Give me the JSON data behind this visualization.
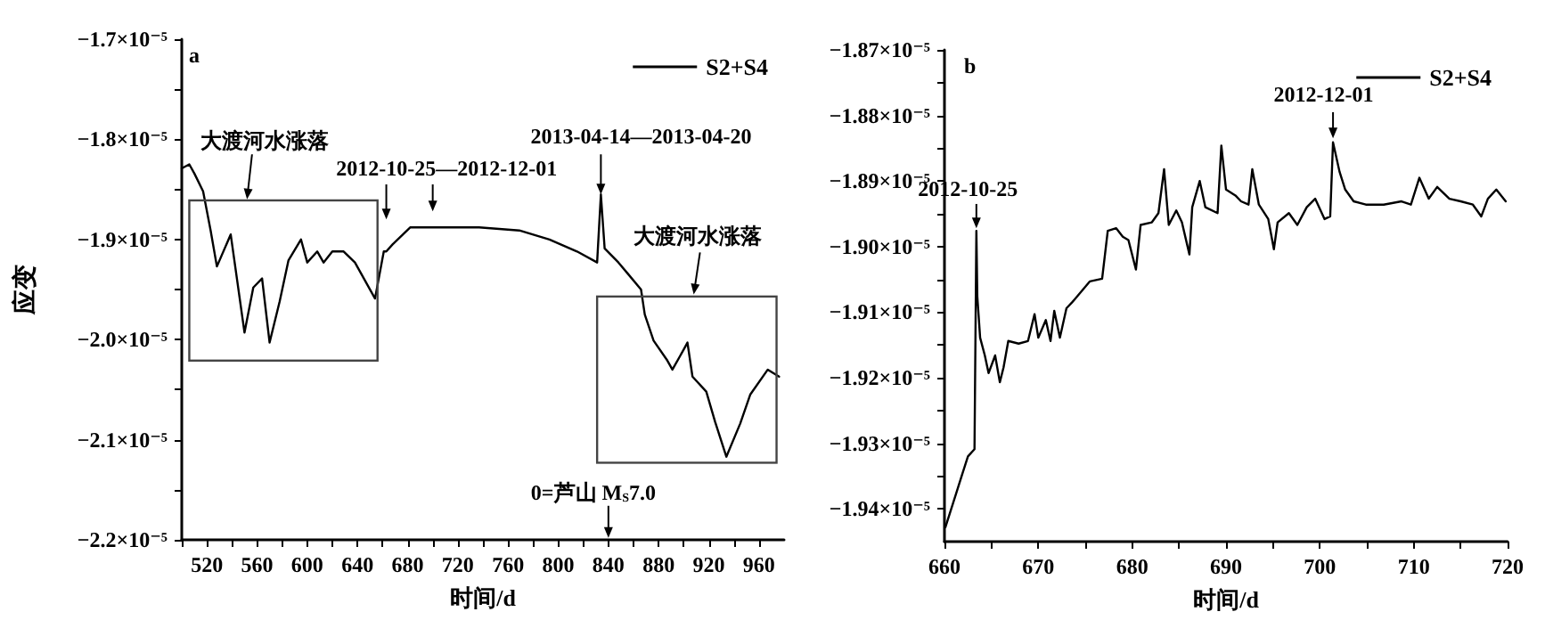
{
  "chart_data": [
    {
      "type": "line",
      "title": "a",
      "xlabel": "时间/d",
      "ylabel": "应变",
      "legend": "top right",
      "grid": false,
      "marker": "none",
      "line_style": "solid",
      "xlim": [
        500,
        980
      ],
      "ylim": [
        -2.2e-05,
        -1.7e-05
      ],
      "xticks": [
        {
          "value": 500,
          "label": null
        },
        520,
        {
          "value": 540,
          "label": null
        },
        560,
        {
          "value": 580,
          "label": null
        },
        600,
        {
          "value": 620,
          "label": null
        },
        640,
        {
          "value": 660,
          "label": null
        },
        680,
        {
          "value": 700,
          "label": null
        },
        720,
        {
          "value": 740,
          "label": null
        },
        760,
        {
          "value": 780,
          "label": null
        },
        800,
        {
          "value": 820,
          "label": null
        },
        840,
        {
          "value": 860,
          "label": null
        },
        880,
        {
          "value": 900,
          "label": null
        },
        920,
        {
          "value": 940,
          "label": null
        },
        960
      ],
      "yticks": [
        {
          "value": -2.2e-05,
          "label": "−2.2×10⁻⁵"
        },
        {
          "value": -2.15e-05,
          "label": null
        },
        {
          "value": -2.1e-05,
          "label": "−2.1×10⁻⁵"
        },
        {
          "value": -2.05e-05,
          "label": null
        },
        {
          "value": -2e-05,
          "label": "−2.0×10⁻⁵"
        },
        {
          "value": -1.95e-05,
          "label": null
        },
        {
          "value": -1.9e-05,
          "label": "−1.9×10⁻⁵"
        },
        {
          "value": -1.85e-05,
          "label": null
        },
        {
          "value": -1.8e-05,
          "label": "−1.8×10⁻⁵"
        },
        {
          "value": -1.75e-05,
          "label": null
        },
        {
          "value": -1.7e-05,
          "label": "−1.7×10⁻⁵"
        }
      ],
      "annotations": [
        "大渡河水涨落",
        "2012-10-25—2012-12-01",
        "2013-04-14—2013-04-20",
        "大渡河水涨落",
        "0=芦山 M$_{S}$7.0"
      ],
      "series": [
        {
          "name": "S2+S4",
          "color": "#000000",
          "x": [
            500,
            506,
            510,
            517,
            523,
            528,
            539,
            550,
            557,
            564,
            570,
            578,
            585,
            595,
            600,
            608,
            613,
            620,
            629,
            638,
            654,
            657,
            661,
            663,
            668,
            682,
            700,
            737,
            769,
            793,
            815,
            831,
            834,
            837,
            848,
            856,
            866,
            869,
            876,
            887,
            891,
            900,
            903,
            907,
            918,
            925,
            934,
            945,
            953,
            967,
            976
          ],
          "values": [
            -1.829e-05,
            -1.825e-05,
            -1.834e-05,
            -1.852e-05,
            -1.891e-05,
            -1.927e-05,
            -1.895e-05,
            -1.993e-05,
            -1.948e-05,
            -1.939e-05,
            -2.003e-05,
            -1.962e-05,
            -1.921e-05,
            -1.9e-05,
            -1.923e-05,
            -1.912e-05,
            -1.923e-05,
            -1.912e-05,
            -1.912e-05,
            -1.923e-05,
            -1.959e-05,
            -1.939e-05,
            -1.912e-05,
            -1.912e-05,
            -1.905e-05,
            -1.888e-05,
            -1.888e-05,
            -1.888e-05,
            -1.891e-05,
            -1.9e-05,
            -1.912e-05,
            -1.923e-05,
            -1.855e-05,
            -1.909e-05,
            -1.923e-05,
            -1.935e-05,
            -1.95e-05,
            -1.975e-05,
            -2.001e-05,
            -2.021e-05,
            -2.03e-05,
            -2.01e-05,
            -2.003e-05,
            -2.037e-05,
            -2.052e-05,
            -2.082e-05,
            -2.117e-05,
            -2.084e-05,
            -2.055e-05,
            -2.03e-05,
            -2.037e-05
          ]
        }
      ]
    },
    {
      "type": "line",
      "title": "b",
      "xlabel": "时间/d",
      "legend": "top right",
      "grid": false,
      "marker": "none",
      "line_style": "solid",
      "xlim": [
        660,
        720
      ],
      "ylim": [
        -1.945e-05,
        -1.87e-05
      ],
      "xticks": [
        660,
        {
          "value": 665,
          "label": null
        },
        670,
        {
          "value": 675,
          "label": null
        },
        680,
        {
          "value": 685,
          "label": null
        },
        690,
        {
          "value": 695,
          "label": null
        },
        700,
        {
          "value": 705,
          "label": null
        },
        710,
        {
          "value": 715,
          "label": null
        },
        720
      ],
      "yticks": [
        {
          "value": -1.94e-05,
          "label": "−1.94×10⁻⁵"
        },
        {
          "value": -1.935e-05,
          "label": null
        },
        {
          "value": -1.93e-05,
          "label": "−1.93×10⁻⁵"
        },
        {
          "value": -1.925e-05,
          "label": null
        },
        {
          "value": -1.92e-05,
          "label": "−1.92×10⁻⁵"
        },
        {
          "value": -1.915e-05,
          "label": null
        },
        {
          "value": -1.91e-05,
          "label": "−1.91×10⁻⁵"
        },
        {
          "value": -1.905e-05,
          "label": null
        },
        {
          "value": -1.9e-05,
          "label": "−1.90×10⁻⁵"
        },
        {
          "value": -1.895e-05,
          "label": null
        },
        {
          "value": -1.89e-05,
          "label": "−1.89×10⁻⁵"
        },
        {
          "value": -1.885e-05,
          "label": null
        },
        {
          "value": -1.88e-05,
          "label": "−1.88×10⁻⁵"
        },
        {
          "value": -1.875e-05,
          "label": null
        },
        {
          "value": -1.87e-05,
          "label": "−1.87×10⁻⁵"
        }
      ],
      "annotations": [
        "2012-10-25",
        "2012-12-01"
      ],
      "series": [
        {
          "name": "S2+S4",
          "color": "#000000",
          "x": [
            660.1,
            661.3,
            661.9,
            662.5,
            663.2,
            663.4,
            663.5,
            663.8,
            664.3,
            664.7,
            665.4,
            665.9,
            666.3,
            666.8,
            667.9,
            668.9,
            669.6,
            670.0,
            670.8,
            671.3,
            671.7,
            672.3,
            673.0,
            673.6,
            673.9,
            675.5,
            676.8,
            677.4,
            678.3,
            679.0,
            679.6,
            680.4,
            680.9,
            682.1,
            682.8,
            683.4,
            683.9,
            684.7,
            685.3,
            686.1,
            686.4,
            687.2,
            687.8,
            689.1,
            689.5,
            690.0,
            691.0,
            691.6,
            692.4,
            692.8,
            693.5,
            694.5,
            695.1,
            695.5,
            696.7,
            697.6,
            698.6,
            699.5,
            700.5,
            701.1,
            701.4,
            702.1,
            702.7,
            703.6,
            704.9,
            706.8,
            708.7,
            709.7,
            710.6,
            711.6,
            712.5,
            713.8,
            715.0,
            716.3,
            717.2,
            717.9,
            718.8,
            719.8
          ],
          "values": [
            -1.9428e-05,
            -1.9374e-05,
            -1.9347e-05,
            -1.932e-05,
            -1.9309e-05,
            -1.8976e-05,
            -1.9076e-05,
            -1.9139e-05,
            -1.9166e-05,
            -1.9193e-05,
            -1.9166e-05,
            -1.9207e-05,
            -1.9184e-05,
            -1.9144e-05,
            -1.9148e-05,
            -1.9144e-05,
            -1.9103e-05,
            -1.9139e-05,
            -1.9112e-05,
            -1.9144e-05,
            -1.9098e-05,
            -1.9139e-05,
            -1.9094e-05,
            -1.9085e-05,
            -1.908e-05,
            -1.9053e-05,
            -1.9049e-05,
            -1.8976e-05,
            -1.8972e-05,
            -1.8985e-05,
            -1.899e-05,
            -1.9035e-05,
            -1.8967e-05,
            -1.8963e-05,
            -1.8949e-05,
            -1.8882e-05,
            -1.8967e-05,
            -1.8945e-05,
            -1.8963e-05,
            -1.9012e-05,
            -1.894e-05,
            -1.89e-05,
            -1.894e-05,
            -1.8949e-05,
            -1.8846e-05,
            -1.8913e-05,
            -1.8922e-05,
            -1.8931e-05,
            -1.8936e-05,
            -1.8882e-05,
            -1.8936e-05,
            -1.8958e-05,
            -1.9004e-05,
            -1.8963e-05,
            -1.8949e-05,
            -1.8967e-05,
            -1.894e-05,
            -1.8927e-05,
            -1.8958e-05,
            -1.8954e-05,
            -1.8841e-05,
            -1.8886e-05,
            -1.8913e-05,
            -1.8931e-05,
            -1.8936e-05,
            -1.8936e-05,
            -1.8931e-05,
            -1.8936e-05,
            -1.8895e-05,
            -1.8927e-05,
            -1.8909e-05,
            -1.8927e-05,
            -1.8931e-05,
            -1.8936e-05,
            -1.8954e-05,
            -1.8927e-05,
            -1.8913e-05,
            -1.8931e-05
          ]
        }
      ]
    }
  ]
}
